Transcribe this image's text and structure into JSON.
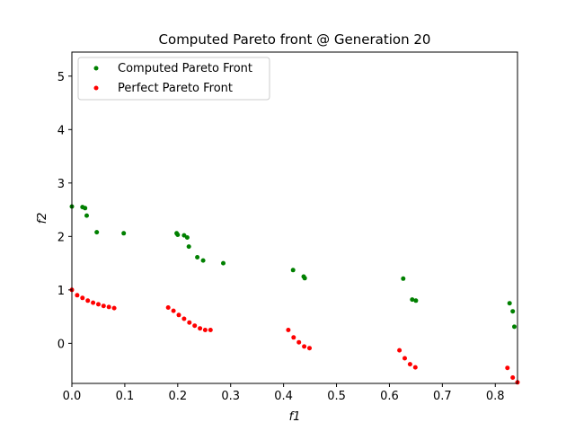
{
  "chart_data": {
    "type": "scatter",
    "title": "Computed Pareto front @ Generation 20",
    "xlabel": "f1",
    "ylabel": "f2",
    "xlim": [
      0.0,
      0.842
    ],
    "ylim": [
      -0.75,
      5.45
    ],
    "xticks": [
      "0.0",
      "0.1",
      "0.2",
      "0.3",
      "0.4",
      "0.5",
      "0.6",
      "0.7",
      "0.8"
    ],
    "yticks": [
      "0",
      "1",
      "2",
      "3",
      "4",
      "5"
    ],
    "grid": false,
    "legend_position": "top-left",
    "series": [
      {
        "name": "Computed Pareto Front",
        "color": "#008000",
        "points": [
          [
            0.0,
            2.56
          ],
          [
            0.02,
            2.55
          ],
          [
            0.025,
            2.53
          ],
          [
            0.028,
            2.39
          ],
          [
            0.047,
            2.08
          ],
          [
            0.098,
            2.06
          ],
          [
            0.198,
            2.06
          ],
          [
            0.2,
            2.03
          ],
          [
            0.212,
            2.02
          ],
          [
            0.218,
            1.98
          ],
          [
            0.221,
            1.81
          ],
          [
            0.237,
            1.61
          ],
          [
            0.248,
            1.55
          ],
          [
            0.286,
            1.5
          ],
          [
            0.418,
            1.37
          ],
          [
            0.438,
            1.25
          ],
          [
            0.44,
            1.22
          ],
          [
            0.626,
            1.21
          ],
          [
            0.643,
            0.82
          ],
          [
            0.65,
            0.8
          ],
          [
            0.827,
            0.75
          ],
          [
            0.833,
            0.6
          ],
          [
            0.836,
            0.31
          ]
        ]
      },
      {
        "name": "Perfect Pareto Front",
        "color": "#ff0000",
        "points": [
          [
            0.0,
            1.0
          ],
          [
            0.01,
            0.9
          ],
          [
            0.02,
            0.85
          ],
          [
            0.03,
            0.8
          ],
          [
            0.04,
            0.76
          ],
          [
            0.05,
            0.73
          ],
          [
            0.06,
            0.7
          ],
          [
            0.07,
            0.68
          ],
          [
            0.08,
            0.66
          ],
          [
            0.182,
            0.67
          ],
          [
            0.192,
            0.61
          ],
          [
            0.202,
            0.53
          ],
          [
            0.212,
            0.46
          ],
          [
            0.222,
            0.39
          ],
          [
            0.232,
            0.33
          ],
          [
            0.242,
            0.28
          ],
          [
            0.252,
            0.25
          ],
          [
            0.262,
            0.25
          ],
          [
            0.409,
            0.25
          ],
          [
            0.419,
            0.11
          ],
          [
            0.429,
            0.02
          ],
          [
            0.439,
            -0.06
          ],
          [
            0.449,
            -0.09
          ],
          [
            0.619,
            -0.13
          ],
          [
            0.629,
            -0.28
          ],
          [
            0.639,
            -0.39
          ],
          [
            0.649,
            -0.45
          ],
          [
            0.823,
            -0.46
          ],
          [
            0.833,
            -0.64
          ],
          [
            0.842,
            -0.73
          ]
        ]
      }
    ]
  }
}
